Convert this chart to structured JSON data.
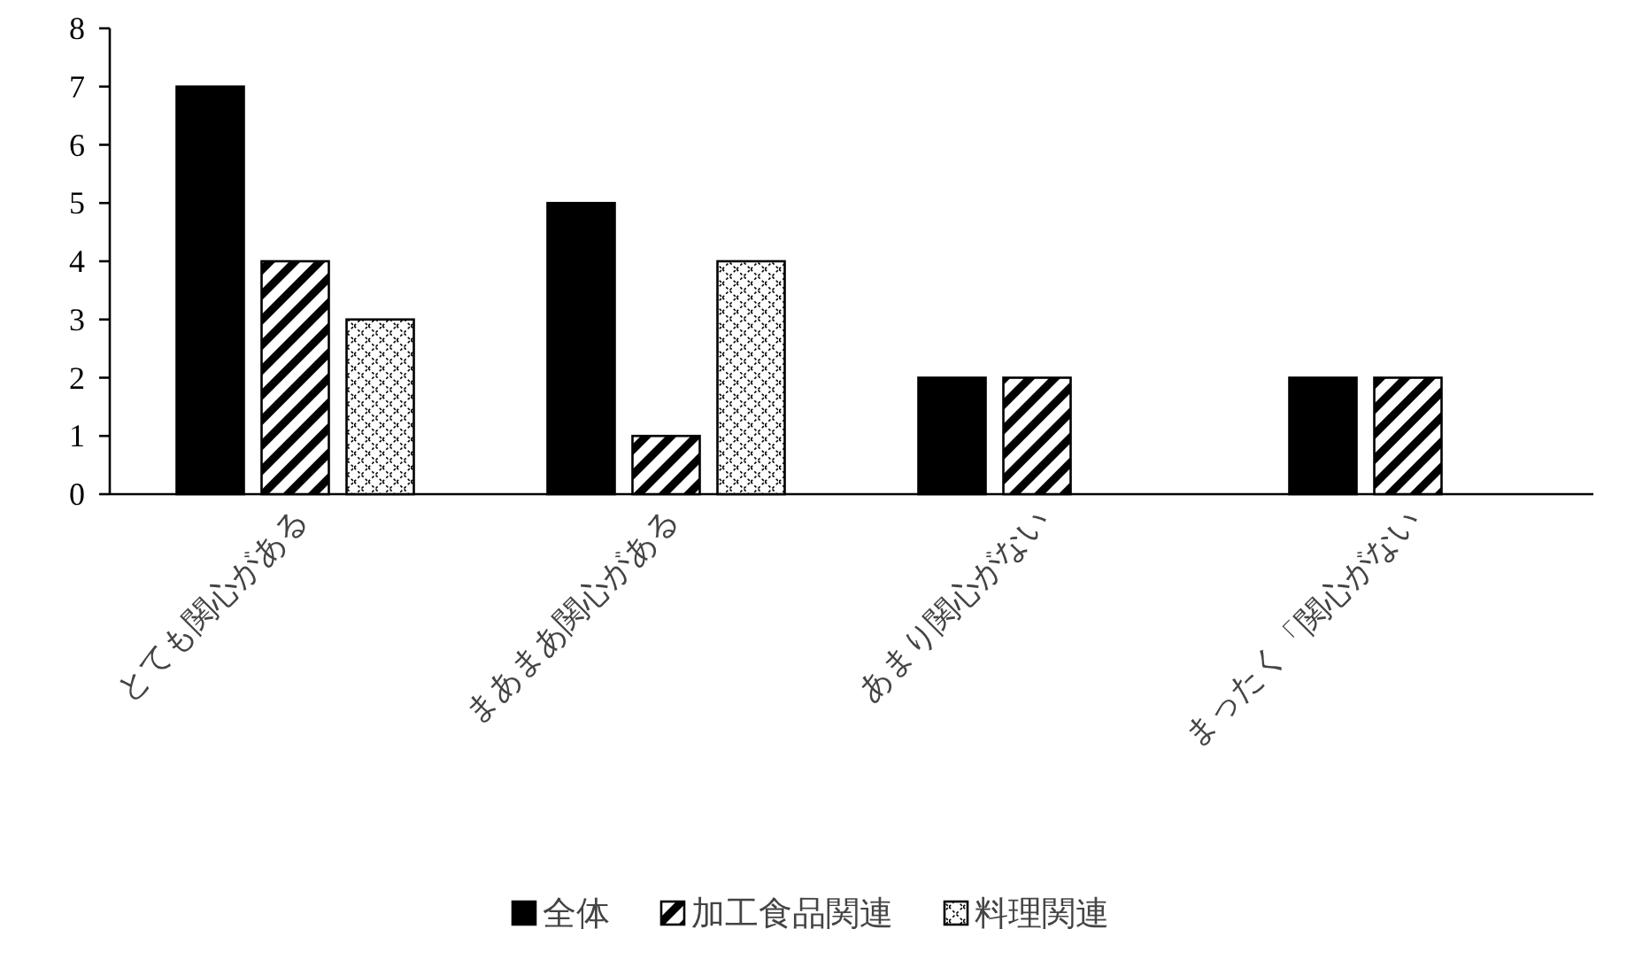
{
  "chart_data": {
    "type": "bar",
    "categories": [
      "とても関心がある",
      "まあまあ関心がある",
      "あまり関心がない",
      "まったく「関心がない"
    ],
    "series": [
      {
        "name": "全体",
        "color": "#000000",
        "values": [
          7,
          5,
          2,
          2
        ]
      },
      {
        "name": "加工食品関連",
        "color": "#000000",
        "values": [
          4,
          1,
          2,
          2
        ]
      },
      {
        "name": "料理関連",
        "color": "#000000",
        "values": [
          3,
          4,
          0,
          0
        ]
      }
    ],
    "ylim": [
      0,
      8
    ],
    "yticks": [
      0,
      1,
      2,
      3,
      4,
      5,
      6,
      7,
      8
    ],
    "grid": false,
    "legend": "bottom"
  }
}
